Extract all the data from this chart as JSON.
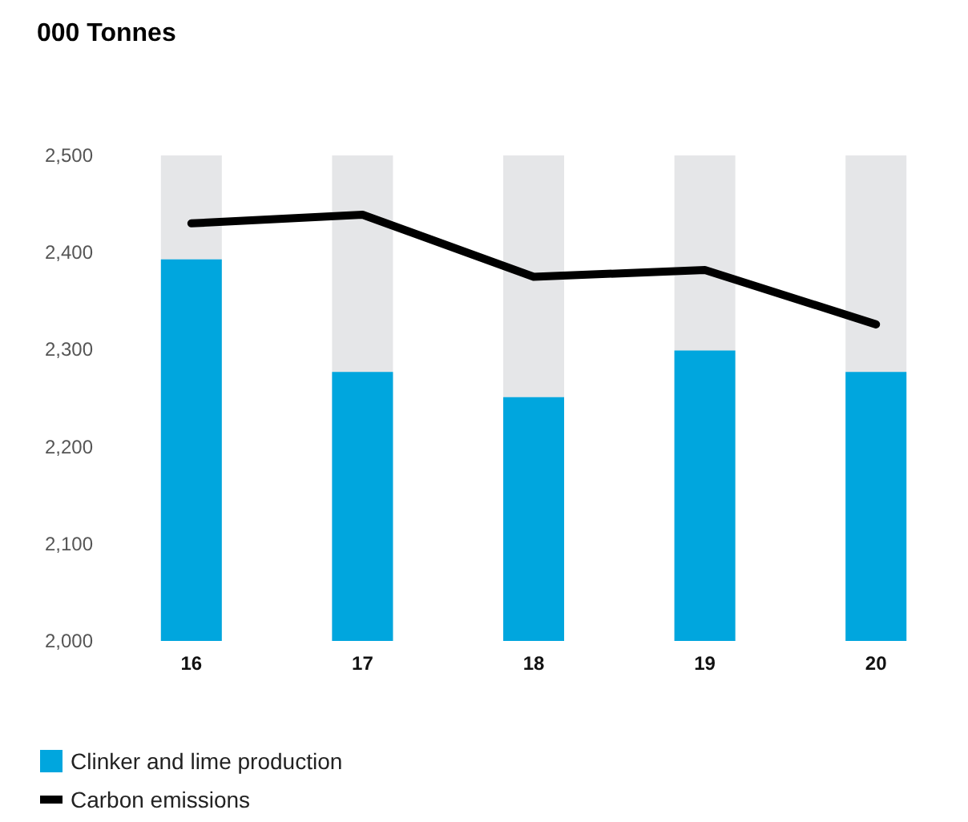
{
  "chart_data": {
    "type": "bar",
    "title": "000 Tonnes",
    "categories": [
      "16",
      "17",
      "18",
      "19",
      "20"
    ],
    "series": [
      {
        "name": "Clinker and lime production",
        "color": "#00a6de",
        "values": [
          2393,
          2277,
          2251,
          2299,
          2277
        ]
      },
      {
        "name": "Carbon emissions",
        "type": "line",
        "color": "#000000",
        "values": [
          2430,
          2439,
          2375,
          2382,
          2326
        ]
      }
    ],
    "ylim": [
      2000,
      2500
    ],
    "yticks": [
      {
        "value": 2000,
        "label": "2,000"
      },
      {
        "value": 2100,
        "label": "2,100"
      },
      {
        "value": 2200,
        "label": "2,200"
      },
      {
        "value": 2300,
        "label": "2,300"
      },
      {
        "value": 2400,
        "label": "2,400"
      },
      {
        "value": 2500,
        "label": "2,500"
      }
    ],
    "grid": false,
    "legend": "bottom left",
    "marker": "none",
    "line_style": "solid"
  }
}
